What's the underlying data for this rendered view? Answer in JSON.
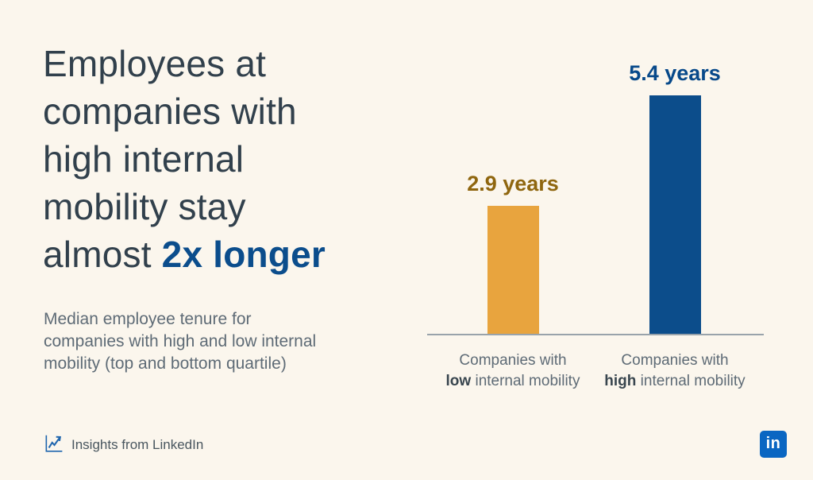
{
  "page": {
    "background_color": "#FBF6ED"
  },
  "headline": {
    "lines": [
      "Employees at",
      "companies with",
      "high internal",
      "mobility stay"
    ],
    "last_line_prefix": "almost ",
    "last_line_emphasis": "2x longer",
    "text_color": "#31404C",
    "emphasis_color": "#0B4D8C"
  },
  "subtitle": {
    "lines": [
      "Median employee tenure for",
      "companies with high and low internal",
      "mobility (top and bottom quartile)"
    ]
  },
  "chart_data": {
    "type": "bar",
    "title": "",
    "xlabel": "",
    "ylabel": "",
    "unit": "years",
    "categories": [
      "Companies with low internal mobility",
      "Companies with high internal mobility"
    ],
    "values": [
      2.9,
      5.4
    ],
    "value_labels": [
      "2.9 years",
      "5.4 years"
    ],
    "bar_colors": [
      "#E8A43E",
      "#0C4D8B"
    ],
    "value_label_colors": [
      "#8F660F",
      "#07498A"
    ],
    "axis_color": "#99A3AB",
    "ylim": [
      0,
      6
    ],
    "grid": false,
    "legend": false,
    "category_labels": [
      {
        "line1": "Companies with",
        "emphasis": "low",
        "rest": " internal mobility"
      },
      {
        "line1": "Companies with",
        "emphasis": "high",
        "rest": " internal mobility"
      }
    ]
  },
  "footer": {
    "attribution": "Insights from LinkedIn",
    "trend_icon": "line-chart-trend-icon",
    "trend_icon_color": "#2066AE",
    "logo_text": "in",
    "logo_color": "#0A66C2"
  }
}
